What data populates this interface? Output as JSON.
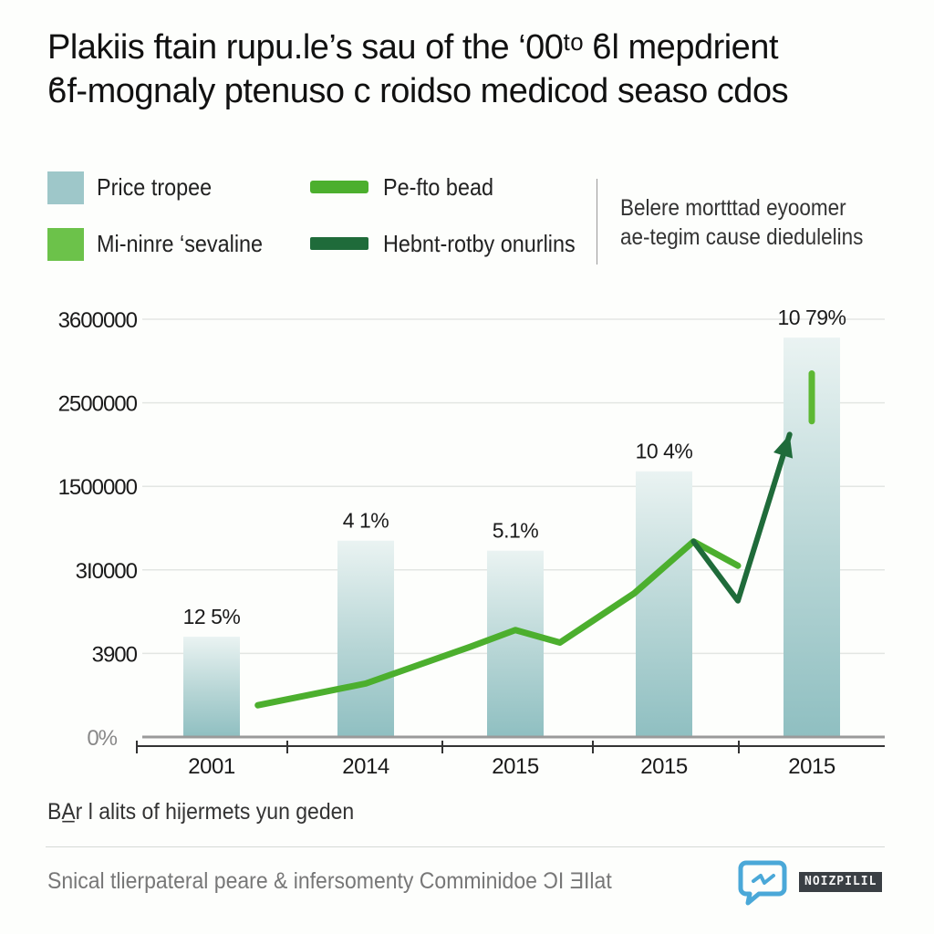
{
  "header": {
    "title_line1": "Plakiis ftain  rupu.le’s sau of the ‘00ᵗᵒ ϐl mepdrient",
    "title_line2": "ϐf-mognaly ptenuso c roidso medicod seaso cdos"
  },
  "legend": {
    "items": [
      {
        "label": "Price tropee",
        "kind": "box",
        "color": "#9ec7c9"
      },
      {
        "label": "Mi-ninre ‘sevaline",
        "kind": "box",
        "color": "#6cc24a"
      },
      {
        "label": "Pe-fto bead",
        "kind": "line",
        "color": "#4caf2e"
      },
      {
        "label": "Hebnt-rotby onurlins",
        "kind": "line",
        "color": "#1f6b3a"
      }
    ],
    "note_line1": "Belere mortttad eyoomer",
    "note_line2": "ae-tegim cause diedulelins"
  },
  "chart_data": {
    "type": "bar",
    "categories": [
      "2001",
      "2014",
      "2015",
      "2015",
      "2015"
    ],
    "y_tick_labels": [
      "0%",
      "3900",
      "3I0000",
      "1500000",
      "2500000",
      "3600000"
    ],
    "bar_values": [
      120,
      235,
      223,
      318,
      478
    ],
    "bar_labels": [
      "12 5%",
      "4 1%",
      "5.1%",
      "10 4%",
      "10 79%"
    ],
    "ylim": [
      0,
      500
    ],
    "line_series": [
      {
        "name": "Pe-fto bead",
        "color": "#4caf2e",
        "points": [
          [
            0.3,
            38
          ],
          [
            1.0,
            64
          ],
          [
            1.7,
            108
          ],
          [
            2.0,
            128
          ],
          [
            2.3,
            113
          ],
          [
            2.8,
            172
          ],
          [
            3.2,
            234
          ],
          [
            3.5,
            205
          ]
        ]
      },
      {
        "name": "Hebnt-rotby onurlins",
        "color": "#1f6b3a",
        "points": [
          [
            3.2,
            234
          ],
          [
            3.5,
            163
          ],
          [
            3.85,
            362
          ]
        ]
      },
      {
        "name": "",
        "color": "#5db833",
        "points": [
          [
            4.22,
            435
          ],
          [
            4.4,
            378
          ]
        ]
      }
    ],
    "grid": true
  },
  "caption": "BA̲r l alits of hijermets yun geden",
  "source": "Snical tlierpateral peare & infersomenty Comminidoe ϽI ƎIlat",
  "logo": {
    "text": "NOIZPILIL",
    "icon": "chat-bubble-icon",
    "color": "#4aa8d8"
  }
}
